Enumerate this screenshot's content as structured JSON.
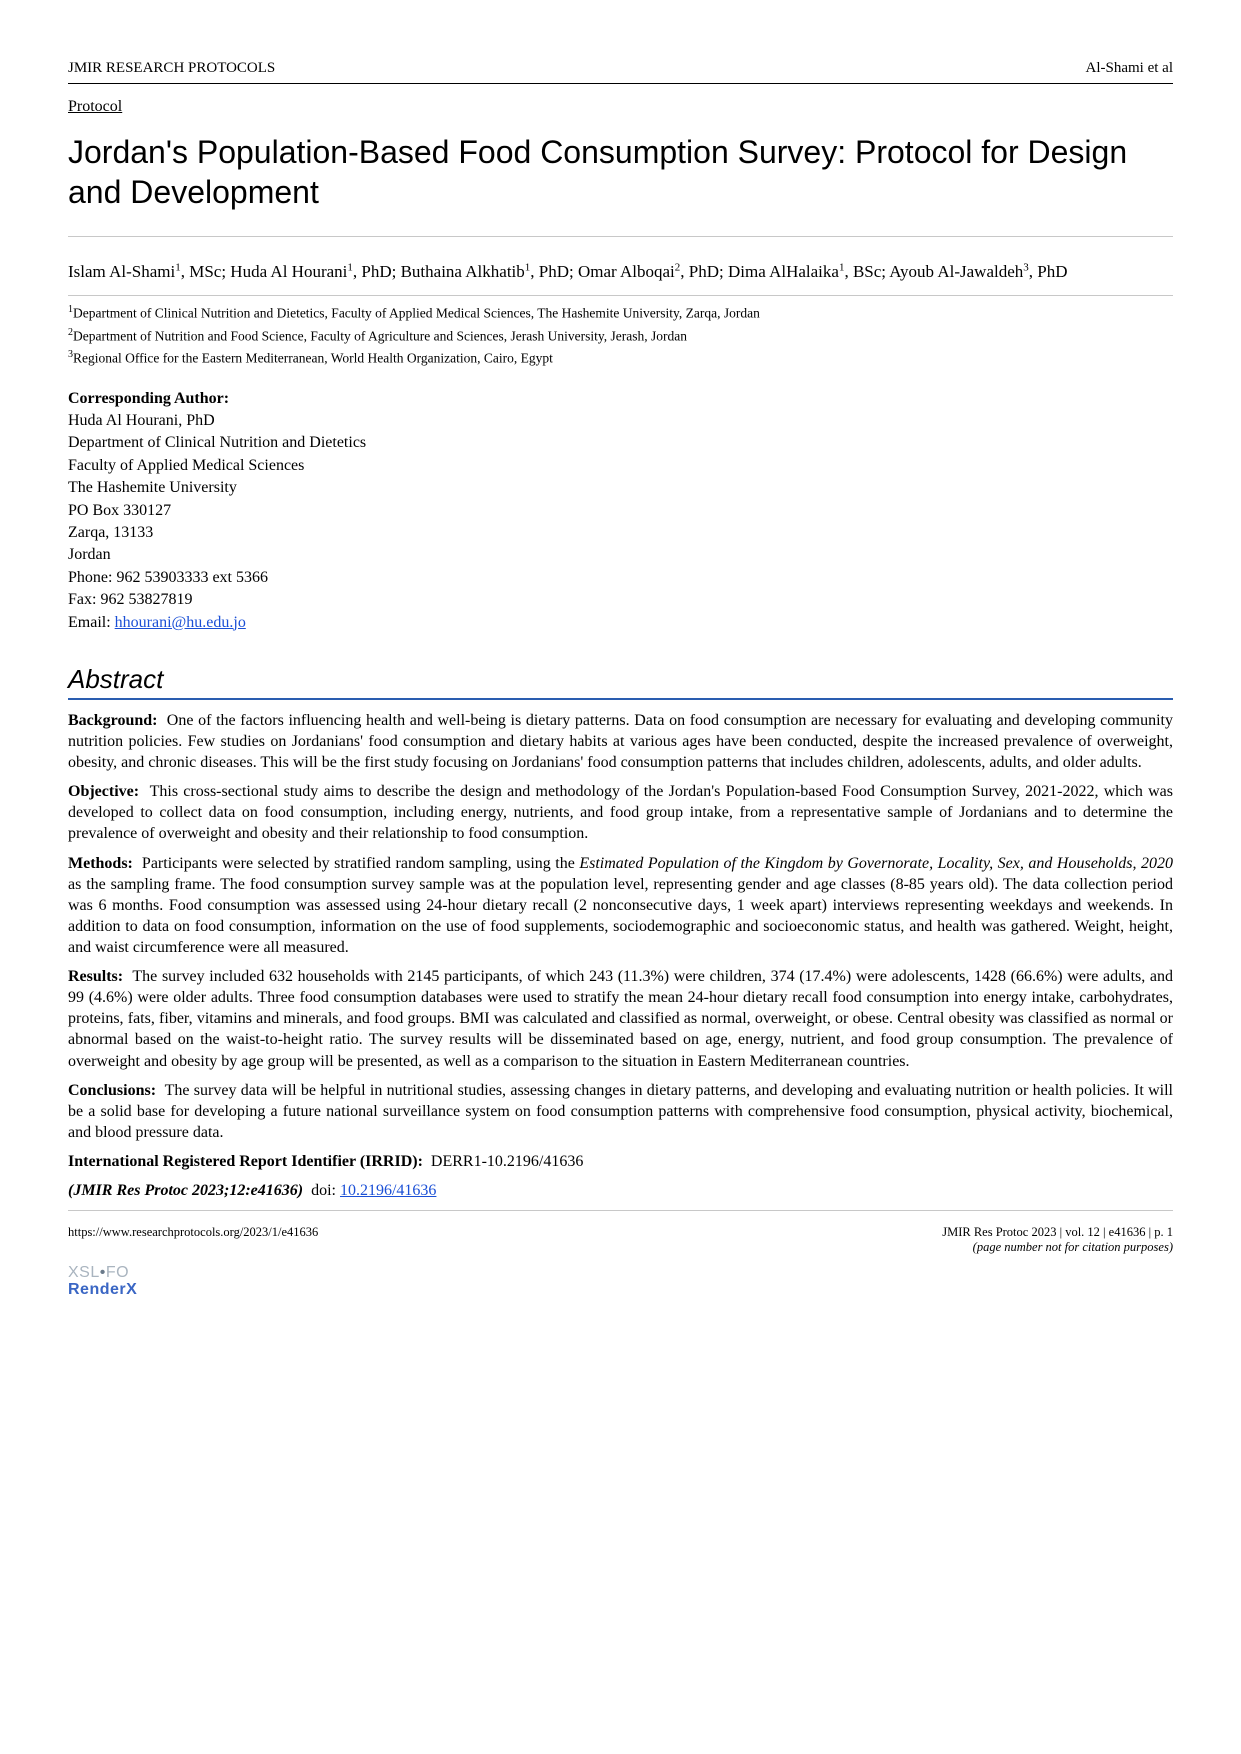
{
  "header": {
    "journal": "JMIR RESEARCH PROTOCOLS",
    "running_head": "Al-Shami et al"
  },
  "article_type": "Protocol",
  "title": "Jordan's Population-Based Food Consumption Survey: Protocol for Design and Development",
  "authors_html": "Islam Al-Shami<sup>1</sup>, MSc; Huda Al Hourani<sup>1</sup>, PhD; Buthaina Alkhatib<sup>1</sup>, PhD; Omar Alboqai<sup>2</sup>, PhD; Dima AlHalaika<sup>1</sup>, BSc; Ayoub Al-Jawaldeh<sup>3</sup>, PhD",
  "affiliations": [
    "Department of Clinical Nutrition and Dietetics, Faculty of Applied Medical Sciences, The Hashemite University, Zarqa, Jordan",
    "Department of Nutrition and Food Science, Faculty of Agriculture and Sciences, Jerash University, Jerash, Jordan",
    "Regional Office for the Eastern Mediterranean, World Health Organization, Cairo, Egypt"
  ],
  "corresponding": {
    "label": "Corresponding Author:",
    "lines": [
      "Huda Al Hourani, PhD",
      "Department of Clinical Nutrition and Dietetics",
      "Faculty of Applied Medical Sciences",
      "The Hashemite University",
      "PO Box 330127",
      "Zarqa, 13133",
      "Jordan",
      "Phone: 962 53903333 ext 5366",
      "Fax: 962 53827819"
    ],
    "email_label": "Email: ",
    "email": "hhourani@hu.edu.jo"
  },
  "abstract": {
    "heading": "Abstract",
    "sections": [
      {
        "label": "Background:",
        "text": "One of the factors influencing health and well-being is dietary patterns. Data on food consumption are necessary for evaluating and developing community nutrition policies. Few studies on Jordanians' food consumption and dietary habits at various ages have been conducted, despite the increased prevalence of overweight, obesity, and chronic diseases. This will be the first study focusing on Jordanians' food consumption patterns that includes children, adolescents, adults, and older adults."
      },
      {
        "label": "Objective:",
        "text": "This cross-sectional study aims to describe the design and methodology of the Jordan's Population-based Food Consumption Survey, 2021-2022, which was developed to collect data on food consumption, including energy, nutrients, and food group intake, from a representative sample of Jordanians and to determine the prevalence of overweight and obesity and their relationship to food consumption."
      },
      {
        "label": "Methods:",
        "text_html": "Participants were selected by stratified random sampling, using the <i>Estimated Population of the Kingdom by Governorate, Locality, Sex, and Households, 2020</i> as the sampling frame. The food consumption survey sample was at the population level, representing gender and age classes (8-85 years old). The data collection period was 6 months. Food consumption was assessed using 24-hour dietary recall (2 nonconsecutive days, 1 week apart) interviews representing weekdays and weekends. In addition to data on food consumption, information on the use of food supplements, sociodemographic and socioeconomic status, and health was gathered. Weight, height, and waist circumference were all measured."
      },
      {
        "label": "Results:",
        "text": "The survey included 632 households with 2145 participants, of which 243 (11.3%) were children, 374 (17.4%) were adolescents, 1428 (66.6%) were adults, and 99 (4.6%) were older adults. Three food consumption databases were used to stratify the mean 24-hour dietary recall food consumption into energy intake, carbohydrates, proteins, fats, fiber, vitamins and minerals, and food groups. BMI was calculated and classified as normal, overweight, or obese. Central obesity was classified as normal or abnormal based on the waist-to-height ratio. The survey results will be disseminated based on age, energy, nutrient, and food group consumption. The prevalence of overweight and obesity by age group will be presented, as well as a comparison to the situation in Eastern Mediterranean countries."
      },
      {
        "label": "Conclusions:",
        "text": "The survey data will be helpful in nutritional studies, assessing changes in dietary patterns, and developing and evaluating nutrition or health policies. It will be a solid base for developing a future national surveillance system on food consumption patterns with comprehensive food consumption, physical activity, biochemical, and blood pressure data."
      },
      {
        "label": "International Registered Report Identifier (IRRID):",
        "text": "DERR1-10.2196/41636"
      }
    ]
  },
  "citation": {
    "journal": "(JMIR Res Protoc 2023;12:e41636)",
    "doi_label": "doi: ",
    "doi": "10.2196/41636"
  },
  "footer": {
    "url": "https://www.researchprotocols.org/2023/1/e41636",
    "right_line1": "JMIR Res Protoc 2023 | vol. 12 | e41636 | p. 1",
    "right_line2": "(page number not for citation purposes)",
    "renderx_line1_a": "XSL",
    "renderx_line1_b": "FO",
    "renderx_line2": "RenderX"
  }
}
